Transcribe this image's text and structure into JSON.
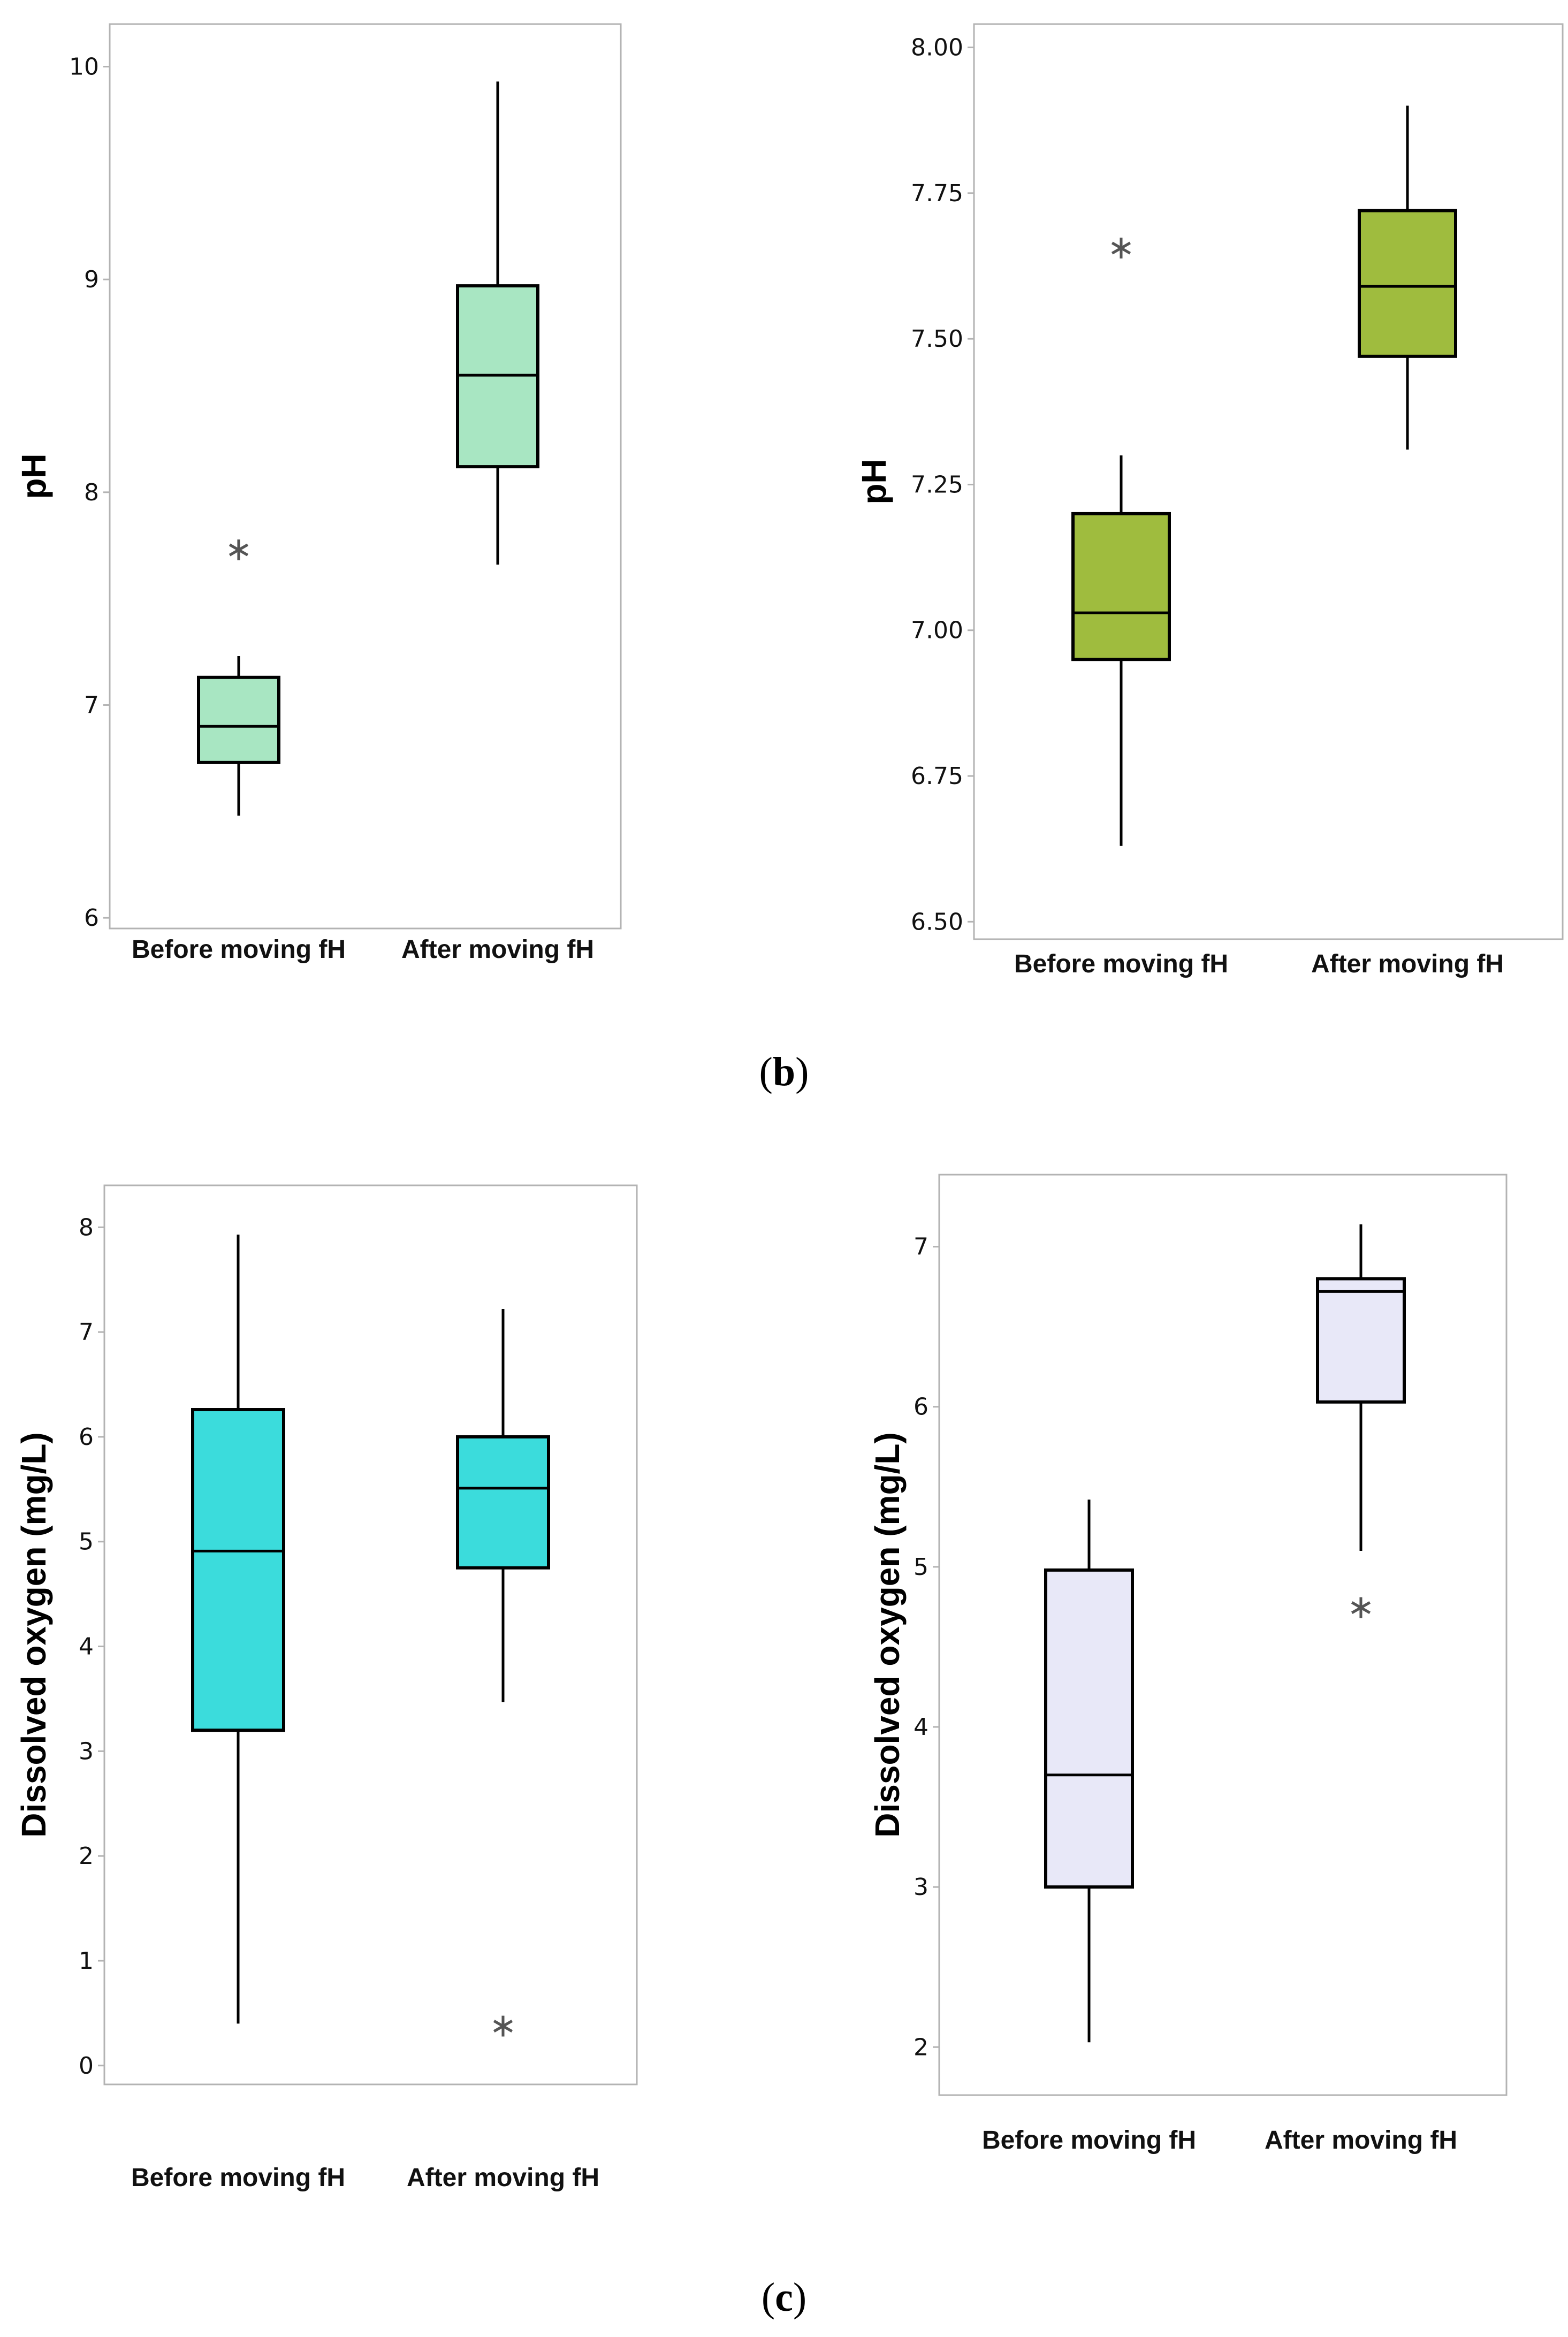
{
  "captions": {
    "b": "b",
    "c": "c"
  },
  "chart_data": [
    {
      "type": "boxplot",
      "ylabel": "pH",
      "ylim": [
        5.95,
        10.2
      ],
      "yticks": [
        "6",
        "7",
        "8",
        "9",
        "10"
      ],
      "ytick_values": [
        6,
        7,
        8,
        9,
        10
      ],
      "box_color": "#a8e6c2",
      "categories": [
        "Before moving fH",
        "After moving fH"
      ],
      "boxes": [
        {
          "whisker_low": 6.48,
          "q1": 6.73,
          "median": 6.9,
          "q3": 7.13,
          "whisker_high": 7.23,
          "outliers": [
            7.74
          ]
        },
        {
          "whisker_low": 7.66,
          "q1": 8.12,
          "median": 8.55,
          "q3": 8.97,
          "whisker_high": 9.93,
          "outliers": []
        }
      ]
    },
    {
      "type": "boxplot",
      "ylabel": "pH",
      "ylim": [
        6.47,
        8.04
      ],
      "yticks": [
        "6.50",
        "6.75",
        "7.00",
        "7.25",
        "7.50",
        "7.75",
        "8.00"
      ],
      "ytick_values": [
        6.5,
        6.75,
        7.0,
        7.25,
        7.5,
        7.75,
        8.0
      ],
      "box_color": "#9fbc3e",
      "categories": [
        "Before moving fH",
        "After moving fH"
      ],
      "boxes": [
        {
          "whisker_low": 6.63,
          "q1": 6.95,
          "median": 7.03,
          "q3": 7.2,
          "whisker_high": 7.3,
          "outliers": [
            7.66
          ]
        },
        {
          "whisker_low": 7.31,
          "q1": 7.47,
          "median": 7.59,
          "q3": 7.72,
          "whisker_high": 7.9,
          "outliers": []
        }
      ]
    },
    {
      "type": "boxplot",
      "ylabel": "Dissolved oxygen (mg/L)",
      "ylim": [
        -0.18,
        8.4
      ],
      "yticks": [
        "0",
        "1",
        "2",
        "3",
        "4",
        "5",
        "6",
        "7",
        "8"
      ],
      "ytick_values": [
        0,
        1,
        2,
        3,
        4,
        5,
        6,
        7,
        8
      ],
      "box_color": "#3bdcdc",
      "categories": [
        "Before moving fH",
        "After moving fH"
      ],
      "boxes": [
        {
          "whisker_low": 0.4,
          "q1": 3.2,
          "median": 4.91,
          "q3": 6.26,
          "whisker_high": 7.93,
          "outliers": []
        },
        {
          "whisker_low": 3.47,
          "q1": 4.75,
          "median": 5.51,
          "q3": 6.0,
          "whisker_high": 7.22,
          "outliers": [
            0.4
          ]
        }
      ]
    },
    {
      "type": "boxplot",
      "ylabel": "Dissolved oxygen (mg/L)",
      "ylim": [
        1.7,
        7.45
      ],
      "yticks": [
        "2",
        "3",
        "4",
        "5",
        "6",
        "7"
      ],
      "ytick_values": [
        2,
        3,
        4,
        5,
        6,
        7
      ],
      "box_color": "#e8e8f8",
      "categories": [
        "Before moving fH",
        "After moving fH"
      ],
      "boxes": [
        {
          "whisker_low": 2.03,
          "q1": 3.0,
          "median": 3.7,
          "q3": 4.98,
          "whisker_high": 5.42,
          "outliers": []
        },
        {
          "whisker_low": 5.1,
          "q1": 6.03,
          "median": 6.72,
          "q3": 6.8,
          "whisker_high": 7.14,
          "outliers": [
            4.76
          ]
        }
      ]
    }
  ]
}
